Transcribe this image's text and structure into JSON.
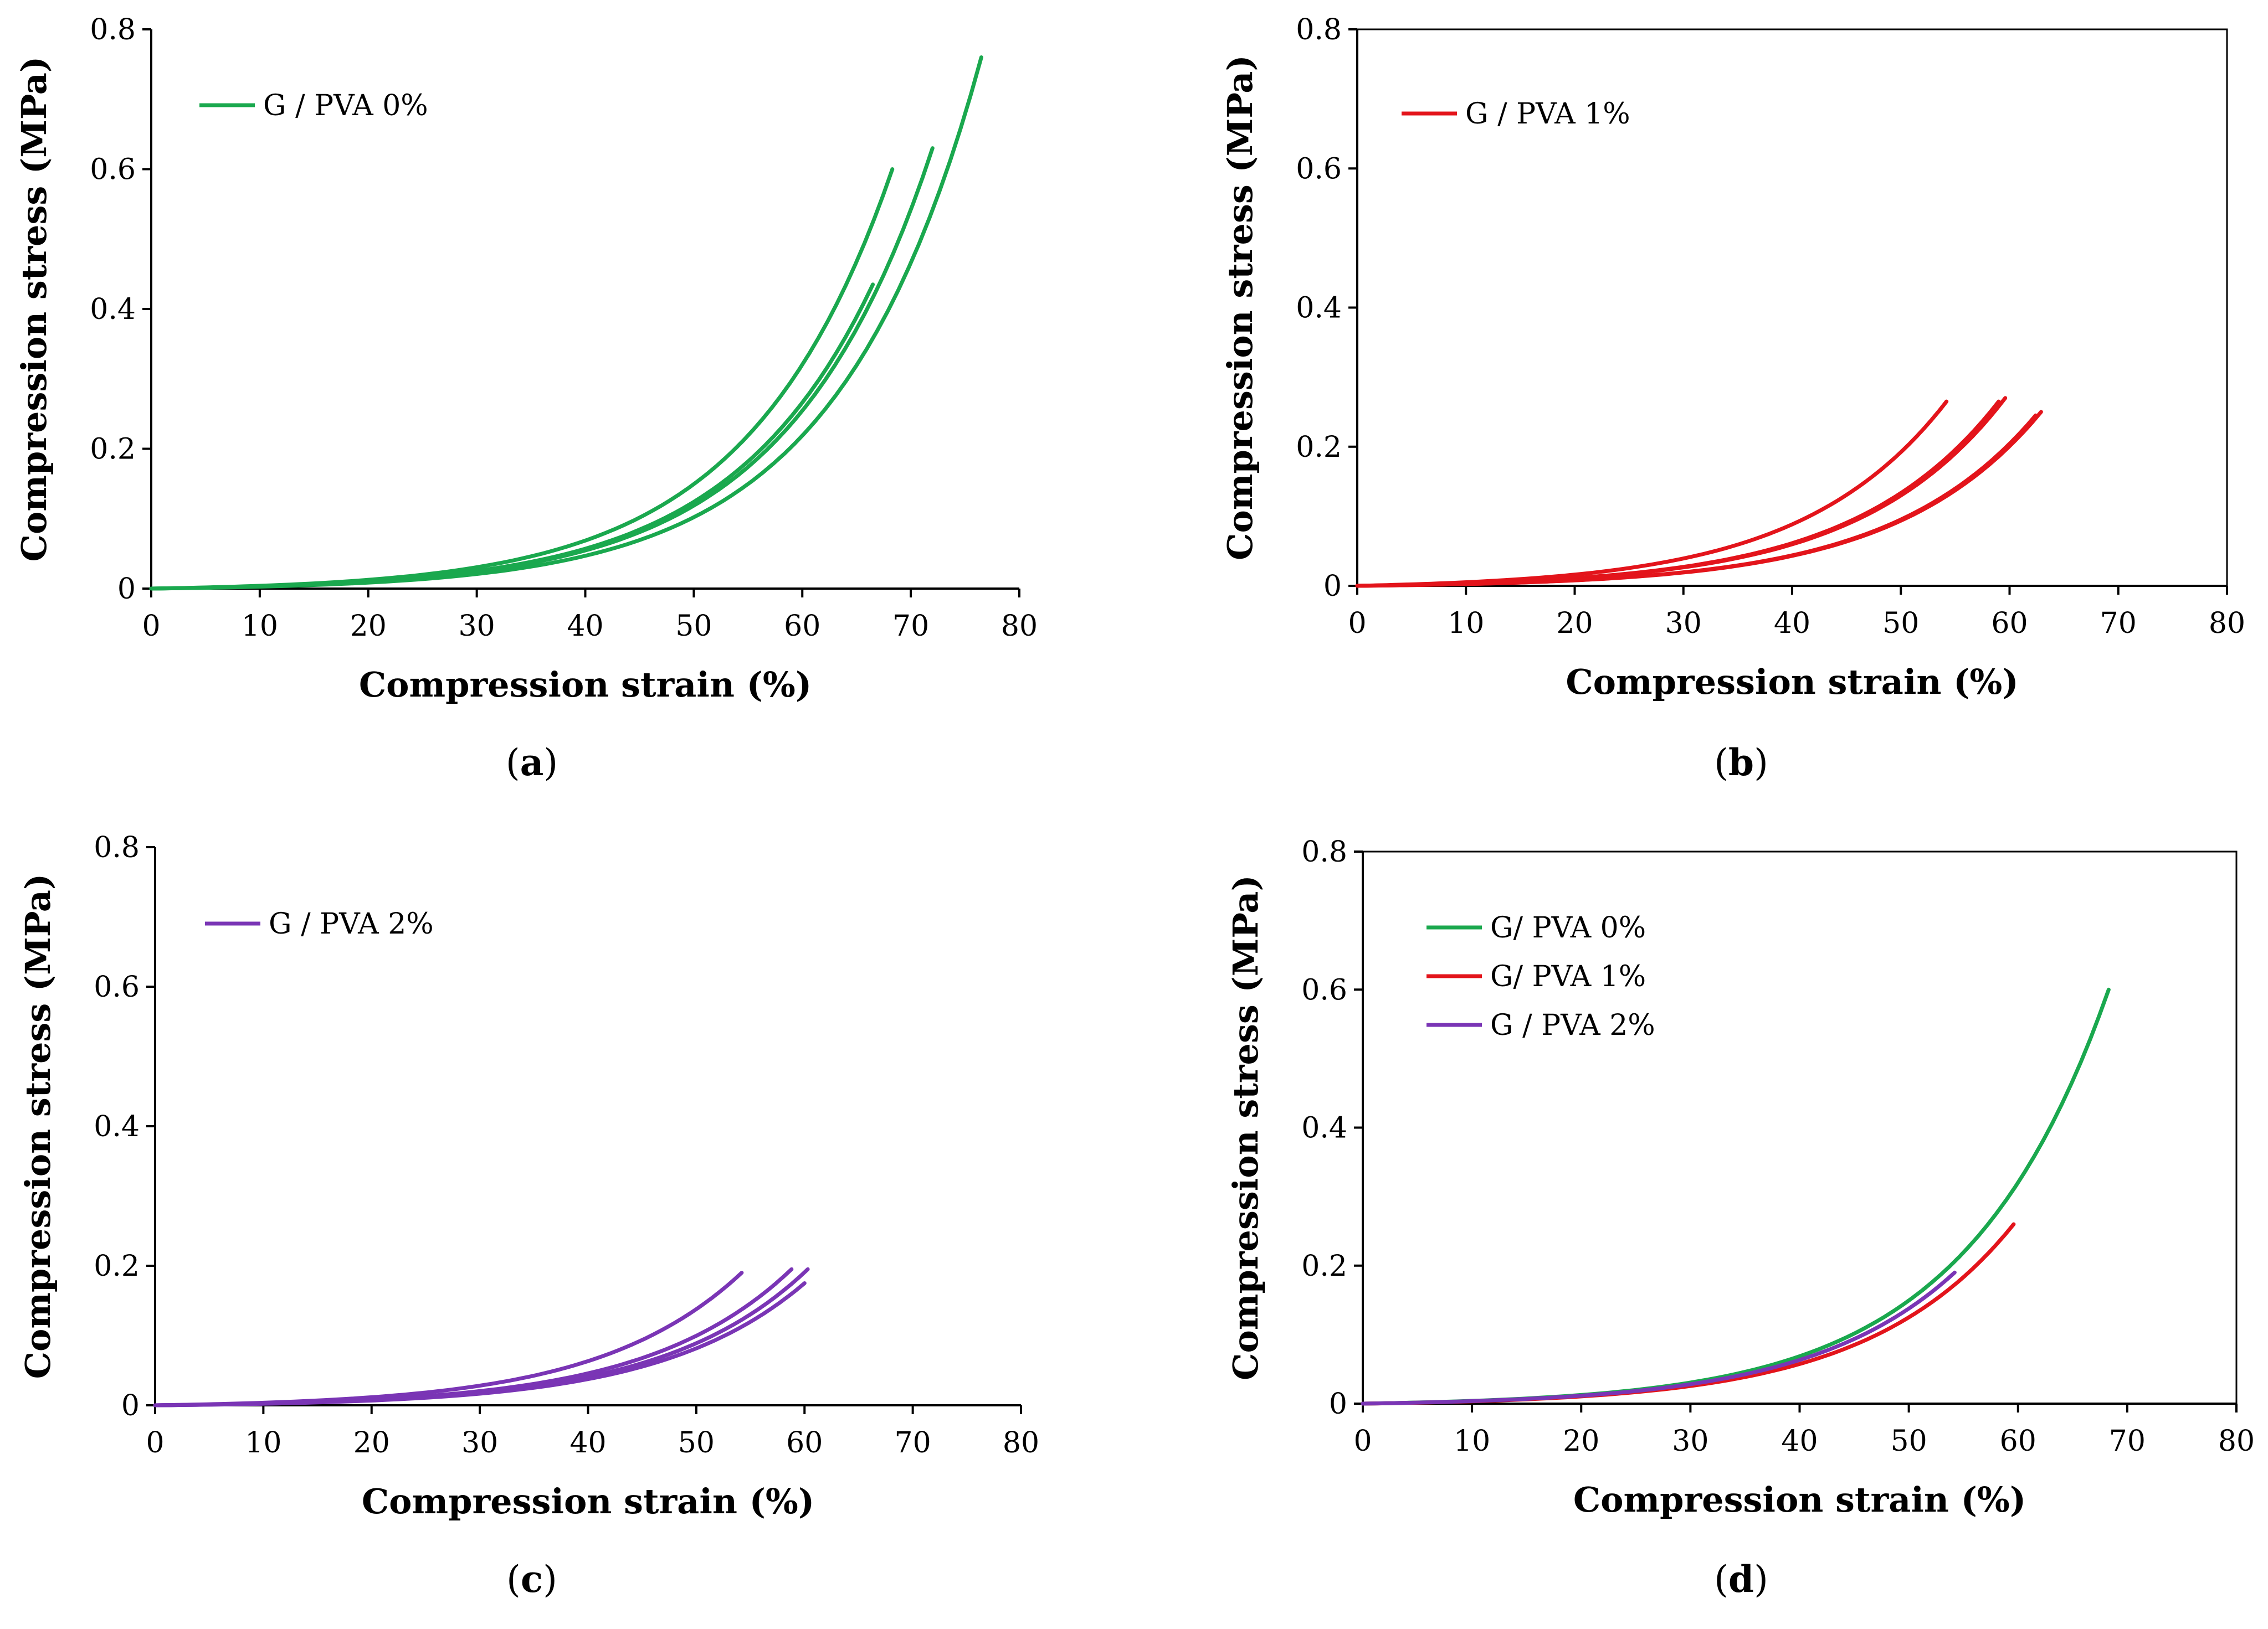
{
  "chart_data": [
    {
      "id": "a",
      "type": "line",
      "caption": "(a)",
      "caption_letter": "a",
      "xlabel": "Compression strain (%)",
      "ylabel": "Compression stress (MPa)",
      "xlim": [
        0,
        80
      ],
      "ylim": [
        0,
        0.8
      ],
      "xticks": [
        "0",
        "10",
        "20",
        "30",
        "40",
        "50",
        "60",
        "70",
        "80"
      ],
      "yticks": [
        "0",
        "0.2",
        "0.4",
        "0.6",
        "0.8"
      ],
      "framed": false,
      "legend": [
        {
          "label": "G / PVA 0%",
          "color": "#1aa84e"
        }
      ],
      "series": [
        {
          "name": "G / PVA 0%",
          "color": "#1aa84e",
          "x_end": 66.5,
          "y_end": 0.435
        },
        {
          "name": "G / PVA 0%",
          "color": "#1aa84e",
          "x_end": 68.3,
          "y_end": 0.6
        },
        {
          "name": "G / PVA 0%",
          "color": "#1aa84e",
          "x_end": 72.0,
          "y_end": 0.63
        },
        {
          "name": "G / PVA 0%",
          "color": "#1aa84e",
          "x_end": 76.5,
          "y_end": 0.76
        }
      ]
    },
    {
      "id": "b",
      "type": "line",
      "caption": "(b)",
      "caption_letter": "b",
      "xlabel": "Compression strain (%)",
      "ylabel": "Compression stress (MPa)",
      "xlim": [
        0,
        80
      ],
      "ylim": [
        0,
        0.8
      ],
      "xticks": [
        "0",
        "10",
        "20",
        "30",
        "40",
        "50",
        "60",
        "70",
        "80"
      ],
      "yticks": [
        "0",
        "0.2",
        "0.4",
        "0.6",
        "0.8"
      ],
      "framed": true,
      "legend": [
        {
          "label": "G / PVA 1%",
          "color": "#e3141b"
        }
      ],
      "series": [
        {
          "name": "G / PVA 1%",
          "color": "#e3141b",
          "x_end": 54.2,
          "y_end": 0.265
        },
        {
          "name": "G / PVA 1%",
          "color": "#e3141b",
          "x_end": 59.0,
          "y_end": 0.265
        },
        {
          "name": "G / PVA 1%",
          "color": "#e3141b",
          "x_end": 59.6,
          "y_end": 0.27
        },
        {
          "name": "G / PVA 1%",
          "color": "#e3141b",
          "x_end": 62.4,
          "y_end": 0.245
        },
        {
          "name": "G / PVA 1%",
          "color": "#e3141b",
          "x_end": 62.9,
          "y_end": 0.25
        }
      ]
    },
    {
      "id": "c",
      "type": "line",
      "caption": "(c)",
      "caption_letter": "c",
      "xlabel": "Compression strain (%)",
      "ylabel": "Compression stress (MPa)",
      "xlim": [
        0,
        80
      ],
      "ylim": [
        0,
        0.8
      ],
      "xticks": [
        "0",
        "10",
        "20",
        "30",
        "40",
        "50",
        "60",
        "70",
        "80"
      ],
      "yticks": [
        "0",
        "0.2",
        "0.4",
        "0.6",
        "0.8"
      ],
      "framed": false,
      "legend": [
        {
          "label": "G / PVA 2%",
          "color": "#7a35b5"
        }
      ],
      "series": [
        {
          "name": "G / PVA 2%",
          "color": "#7a35b5",
          "x_end": 54.2,
          "y_end": 0.19
        },
        {
          "name": "G / PVA 2%",
          "color": "#7a35b5",
          "x_end": 58.8,
          "y_end": 0.195
        },
        {
          "name": "G / PVA 2%",
          "color": "#7a35b5",
          "x_end": 60.3,
          "y_end": 0.195
        },
        {
          "name": "G / PVA 2%",
          "color": "#7a35b5",
          "x_end": 60.0,
          "y_end": 0.175
        }
      ]
    },
    {
      "id": "d",
      "type": "line",
      "caption": "(d)",
      "caption_letter": "d",
      "xlabel": "Compression strain (%)",
      "ylabel": "Compression stress (MPa)",
      "xlim": [
        0,
        80
      ],
      "ylim": [
        0,
        0.8
      ],
      "xticks": [
        "0",
        "10",
        "20",
        "30",
        "40",
        "50",
        "60",
        "70",
        "80"
      ],
      "yticks": [
        "0",
        "0.2",
        "0.4",
        "0.6",
        "0.8"
      ],
      "framed": true,
      "legend": [
        {
          "label": "G/ PVA 0%",
          "color": "#1aa84e"
        },
        {
          "label": "G/ PVA 1%",
          "color": "#e3141b"
        },
        {
          "label": "G / PVA 2%",
          "color": "#7a35b5"
        }
      ],
      "series": [
        {
          "name": "G/ PVA 0%",
          "color": "#1aa84e",
          "x_end": 68.3,
          "y_end": 0.6
        },
        {
          "name": "G/ PVA 1%",
          "color": "#e3141b",
          "x_end": 59.6,
          "y_end": 0.26
        },
        {
          "name": "G / PVA 2%",
          "color": "#7a35b5",
          "x_end": 54.2,
          "y_end": 0.19
        }
      ]
    }
  ]
}
